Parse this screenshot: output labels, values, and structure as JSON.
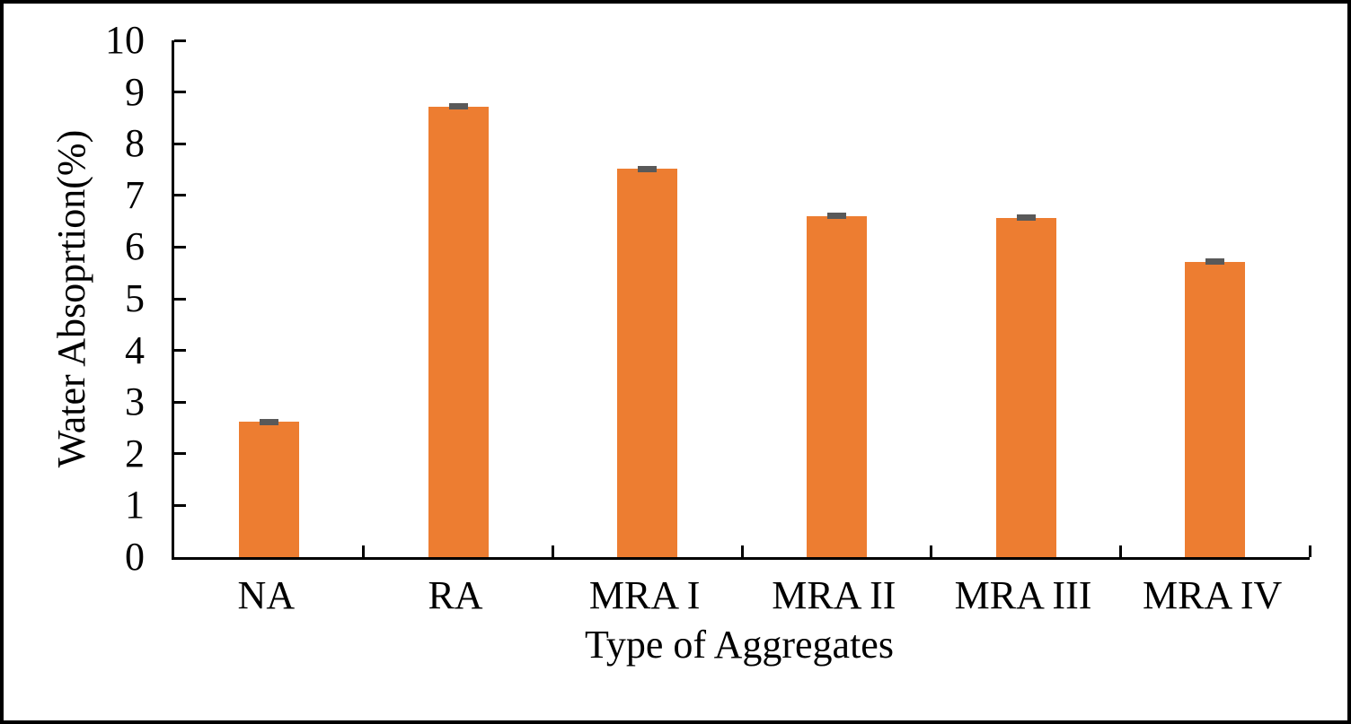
{
  "figure": {
    "background_color": "#ffffff",
    "frame_border_color": "#000000"
  },
  "chart_data": {
    "type": "bar",
    "title": "",
    "xlabel": "Type of Aggregates",
    "ylabel": "Water Absoprtion(%)",
    "categories": [
      "NA",
      "RA",
      "MRA I",
      "MRA II",
      "MRA III",
      "MRA IV"
    ],
    "values": [
      2.62,
      8.72,
      7.51,
      6.6,
      6.57,
      5.72
    ],
    "errors": [
      0.05,
      0.05,
      0.05,
      0.05,
      0.05,
      0.05
    ],
    "ylim": [
      0,
      10
    ],
    "yticks": [
      0,
      1,
      2,
      3,
      4,
      5,
      6,
      7,
      8,
      9,
      10
    ],
    "grid": "off",
    "legend": "none",
    "tick_direction": "in",
    "bar_color": "#ED7D31",
    "error_bar_color": "#595959",
    "axis_color": "#000000",
    "text_color": "#000000"
  }
}
